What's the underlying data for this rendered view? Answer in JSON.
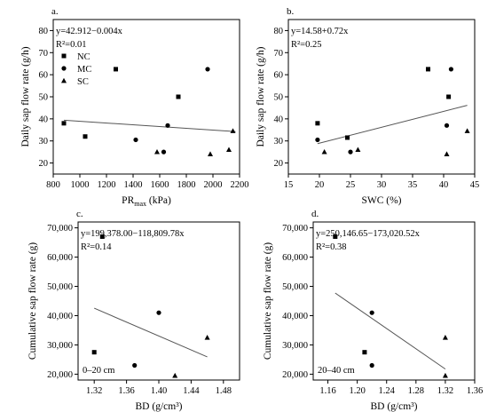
{
  "chart_data": [
    {
      "type": "scatter",
      "panel": "a.",
      "equation": "y=42.912−0.004x",
      "r2": "R²=0.01",
      "xlabel": "PR",
      "xlabel_sub": "max",
      "xlabel_unit": " (kPa)",
      "ylabel": "Daily sap flow rate (g/h)",
      "xlim": [
        800,
        2200
      ],
      "ylim": [
        15,
        85
      ],
      "xticks": [
        800,
        1000,
        1200,
        1400,
        1600,
        1800,
        2000,
        2200
      ],
      "yticks": [
        20,
        30,
        40,
        50,
        60,
        70,
        80
      ],
      "legend": [
        "NC",
        "MC",
        "SC"
      ],
      "legend_position": "top-left",
      "series": [
        {
          "name": "NC",
          "marker": "square",
          "x": [
            880,
            1040,
            1270,
            1740
          ],
          "y": [
            38,
            32,
            62.5,
            50
          ]
        },
        {
          "name": "MC",
          "marker": "circle",
          "x": [
            1420,
            1630,
            1660,
            1960
          ],
          "y": [
            30.5,
            25,
            37,
            62.5
          ]
        },
        {
          "name": "SC",
          "marker": "triangle",
          "x": [
            1580,
            1980,
            2120,
            2150
          ],
          "y": [
            25,
            24,
            26,
            34.5
          ]
        }
      ],
      "trendline": {
        "slope": -0.004,
        "intercept": 42.912,
        "x_range": [
          880,
          2170
        ]
      }
    },
    {
      "type": "scatter",
      "panel": "b.",
      "equation": "y=14.58+0.72x",
      "r2": "R²=0.25",
      "xlabel": "SWC (%)",
      "ylabel": "Daily sap flow rate (g/h)",
      "xlim": [
        15,
        45
      ],
      "ylim": [
        15,
        85
      ],
      "xticks": [
        15,
        20,
        25,
        30,
        35,
        40,
        45
      ],
      "yticks": [
        20,
        30,
        40,
        50,
        60,
        70,
        80
      ],
      "series": [
        {
          "name": "NC",
          "marker": "square",
          "x": [
            19.7,
            24.5,
            37.5,
            40.8
          ],
          "y": [
            38,
            31.5,
            62.5,
            50
          ]
        },
        {
          "name": "MC",
          "marker": "circle",
          "x": [
            19.7,
            25,
            40.5,
            41.2
          ],
          "y": [
            30.5,
            25,
            37,
            62.5
          ]
        },
        {
          "name": "SC",
          "marker": "triangle",
          "x": [
            20.8,
            26.2,
            40.5,
            43.8
          ],
          "y": [
            25,
            26,
            24,
            34.5
          ]
        }
      ],
      "trendline": {
        "slope": 0.72,
        "intercept": 14.58,
        "x_range": [
          19.7,
          43.8
        ]
      }
    },
    {
      "type": "scatter",
      "panel": "c.",
      "equation": "y=199,378.00−118,809.78x",
      "r2": "R²=0.14",
      "note": "0–20 cm",
      "xlabel": "BD (g/cm³)",
      "ylabel": "Cumulative sap flow rate (g)",
      "xlim": [
        1.3,
        1.5
      ],
      "ylim": [
        18000,
        72000
      ],
      "xticks": [
        1.32,
        1.36,
        1.4,
        1.44,
        1.48
      ],
      "yticks": [
        20000,
        30000,
        40000,
        50000,
        60000,
        70000
      ],
      "series": [
        {
          "name": "NC",
          "marker": "square",
          "x": [
            1.32,
            1.33
          ],
          "y": [
            27500,
            67000
          ]
        },
        {
          "name": "MC",
          "marker": "circle",
          "x": [
            1.37,
            1.4
          ],
          "y": [
            23000,
            41000
          ]
        },
        {
          "name": "SC",
          "marker": "triangle",
          "x": [
            1.42,
            1.46
          ],
          "y": [
            19500,
            32500
          ]
        }
      ],
      "trendline": {
        "slope": -118809.78,
        "intercept": 199378.0,
        "x_range": [
          1.32,
          1.46
        ]
      }
    },
    {
      "type": "scatter",
      "panel": "d.",
      "equation": "y=250,146.65−173,020.52x",
      "r2": "R²=0.38",
      "note": "20–40 cm",
      "xlabel": "BD (g/cm³)",
      "ylabel": "Cumulative sap flow rate (g)",
      "xlim": [
        1.14,
        1.36
      ],
      "ylim": [
        18000,
        72000
      ],
      "xticks": [
        1.16,
        1.2,
        1.24,
        1.28,
        1.32,
        1.36
      ],
      "yticks": [
        20000,
        30000,
        40000,
        50000,
        60000,
        70000
      ],
      "series": [
        {
          "name": "NC",
          "marker": "square",
          "x": [
            1.17,
            1.21
          ],
          "y": [
            67000,
            27500
          ]
        },
        {
          "name": "MC",
          "marker": "circle",
          "x": [
            1.22,
            1.22
          ],
          "y": [
            41000,
            23000
          ]
        },
        {
          "name": "SC",
          "marker": "triangle",
          "x": [
            1.32,
            1.32
          ],
          "y": [
            32500,
            19500
          ]
        }
      ],
      "trendline": {
        "slope": -173020.52,
        "intercept": 250146.65,
        "x_range": [
          1.17,
          1.32
        ]
      }
    }
  ]
}
